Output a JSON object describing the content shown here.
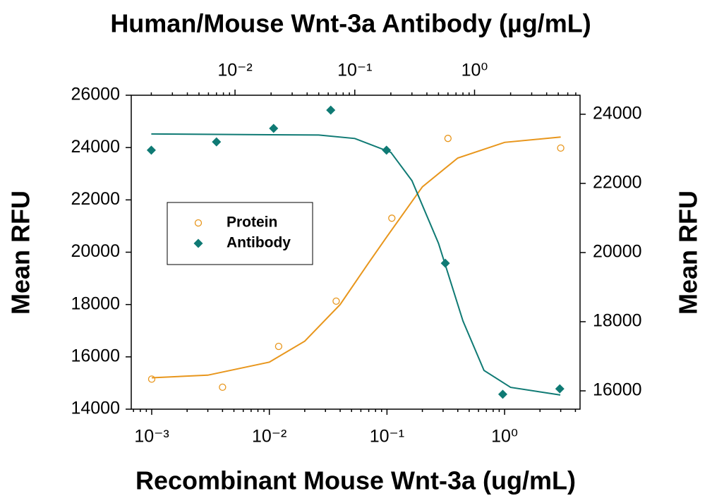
{
  "chart_data": {
    "type": "scatter",
    "title": "Human/Mouse Wnt-3a Antibody (µg/mL)",
    "xlabel": "Recombinant Mouse Wnt-3a (ug/mL)",
    "ylabel": "Mean RFU",
    "y2label": "Mean RFU",
    "xscale": "log",
    "x2scale": "log",
    "xlim": [
      0.00067,
      4.38
    ],
    "xticks": [
      {
        "value": 0.001,
        "label": "10⁻³"
      },
      {
        "value": 0.01,
        "label": "10⁻²"
      },
      {
        "value": 0.1,
        "label": "10⁻¹"
      },
      {
        "value": 1,
        "label": "10⁰"
      }
    ],
    "x2lim": [
      0.00136,
      7.6
    ],
    "x2ticks": [
      {
        "value": 0.01,
        "label": "10⁻²"
      },
      {
        "value": 0.1,
        "label": "10⁻¹"
      },
      {
        "value": 1,
        "label": "10⁰"
      }
    ],
    "ylim": [
      14000,
      26000
    ],
    "yticks": [
      14000,
      16000,
      18000,
      20000,
      22000,
      24000,
      26000
    ],
    "y2lim": [
      15470,
      24550
    ],
    "y2ticks": [
      16000,
      18000,
      20000,
      22000,
      24000
    ],
    "legend": "upper-left",
    "series": [
      {
        "name": "Protein",
        "color": "#e8961c",
        "marker": "circle-open",
        "xaxis": "x",
        "axis": "y",
        "x": [
          0.001,
          0.004,
          0.012,
          0.037,
          0.11,
          0.33,
          3
        ],
        "values": [
          15150,
          14840,
          16400,
          18130,
          21300,
          24350,
          23980
        ],
        "curve": {
          "x": [
            0.001,
            0.003,
            0.01,
            0.02,
            0.04,
            0.07,
            0.1,
            0.2,
            0.4,
            1,
            3
          ],
          "values": [
            15200,
            15300,
            15800,
            16600,
            18000,
            19600,
            20600,
            22500,
            23600,
            24200,
            24400
          ]
        }
      },
      {
        "name": "Antibody",
        "color": "#0f7a74",
        "marker": "diamond",
        "xaxis": "x2",
        "axis": "y2",
        "x": [
          0.002,
          0.007,
          0.021,
          0.063,
          0.184,
          0.57,
          1.72,
          5.15
        ],
        "values": [
          22960,
          23200,
          23590,
          24120,
          22960,
          19690,
          15900,
          16060
        ],
        "curve": {
          "x": [
            0.002,
            0.05,
            0.1,
            0.2,
            0.3,
            0.5,
            0.8,
            1.2,
            2,
            5.2
          ],
          "values": [
            23430,
            23400,
            23300,
            22900,
            22080,
            20270,
            18020,
            16590,
            16100,
            15880
          ]
        }
      }
    ]
  }
}
